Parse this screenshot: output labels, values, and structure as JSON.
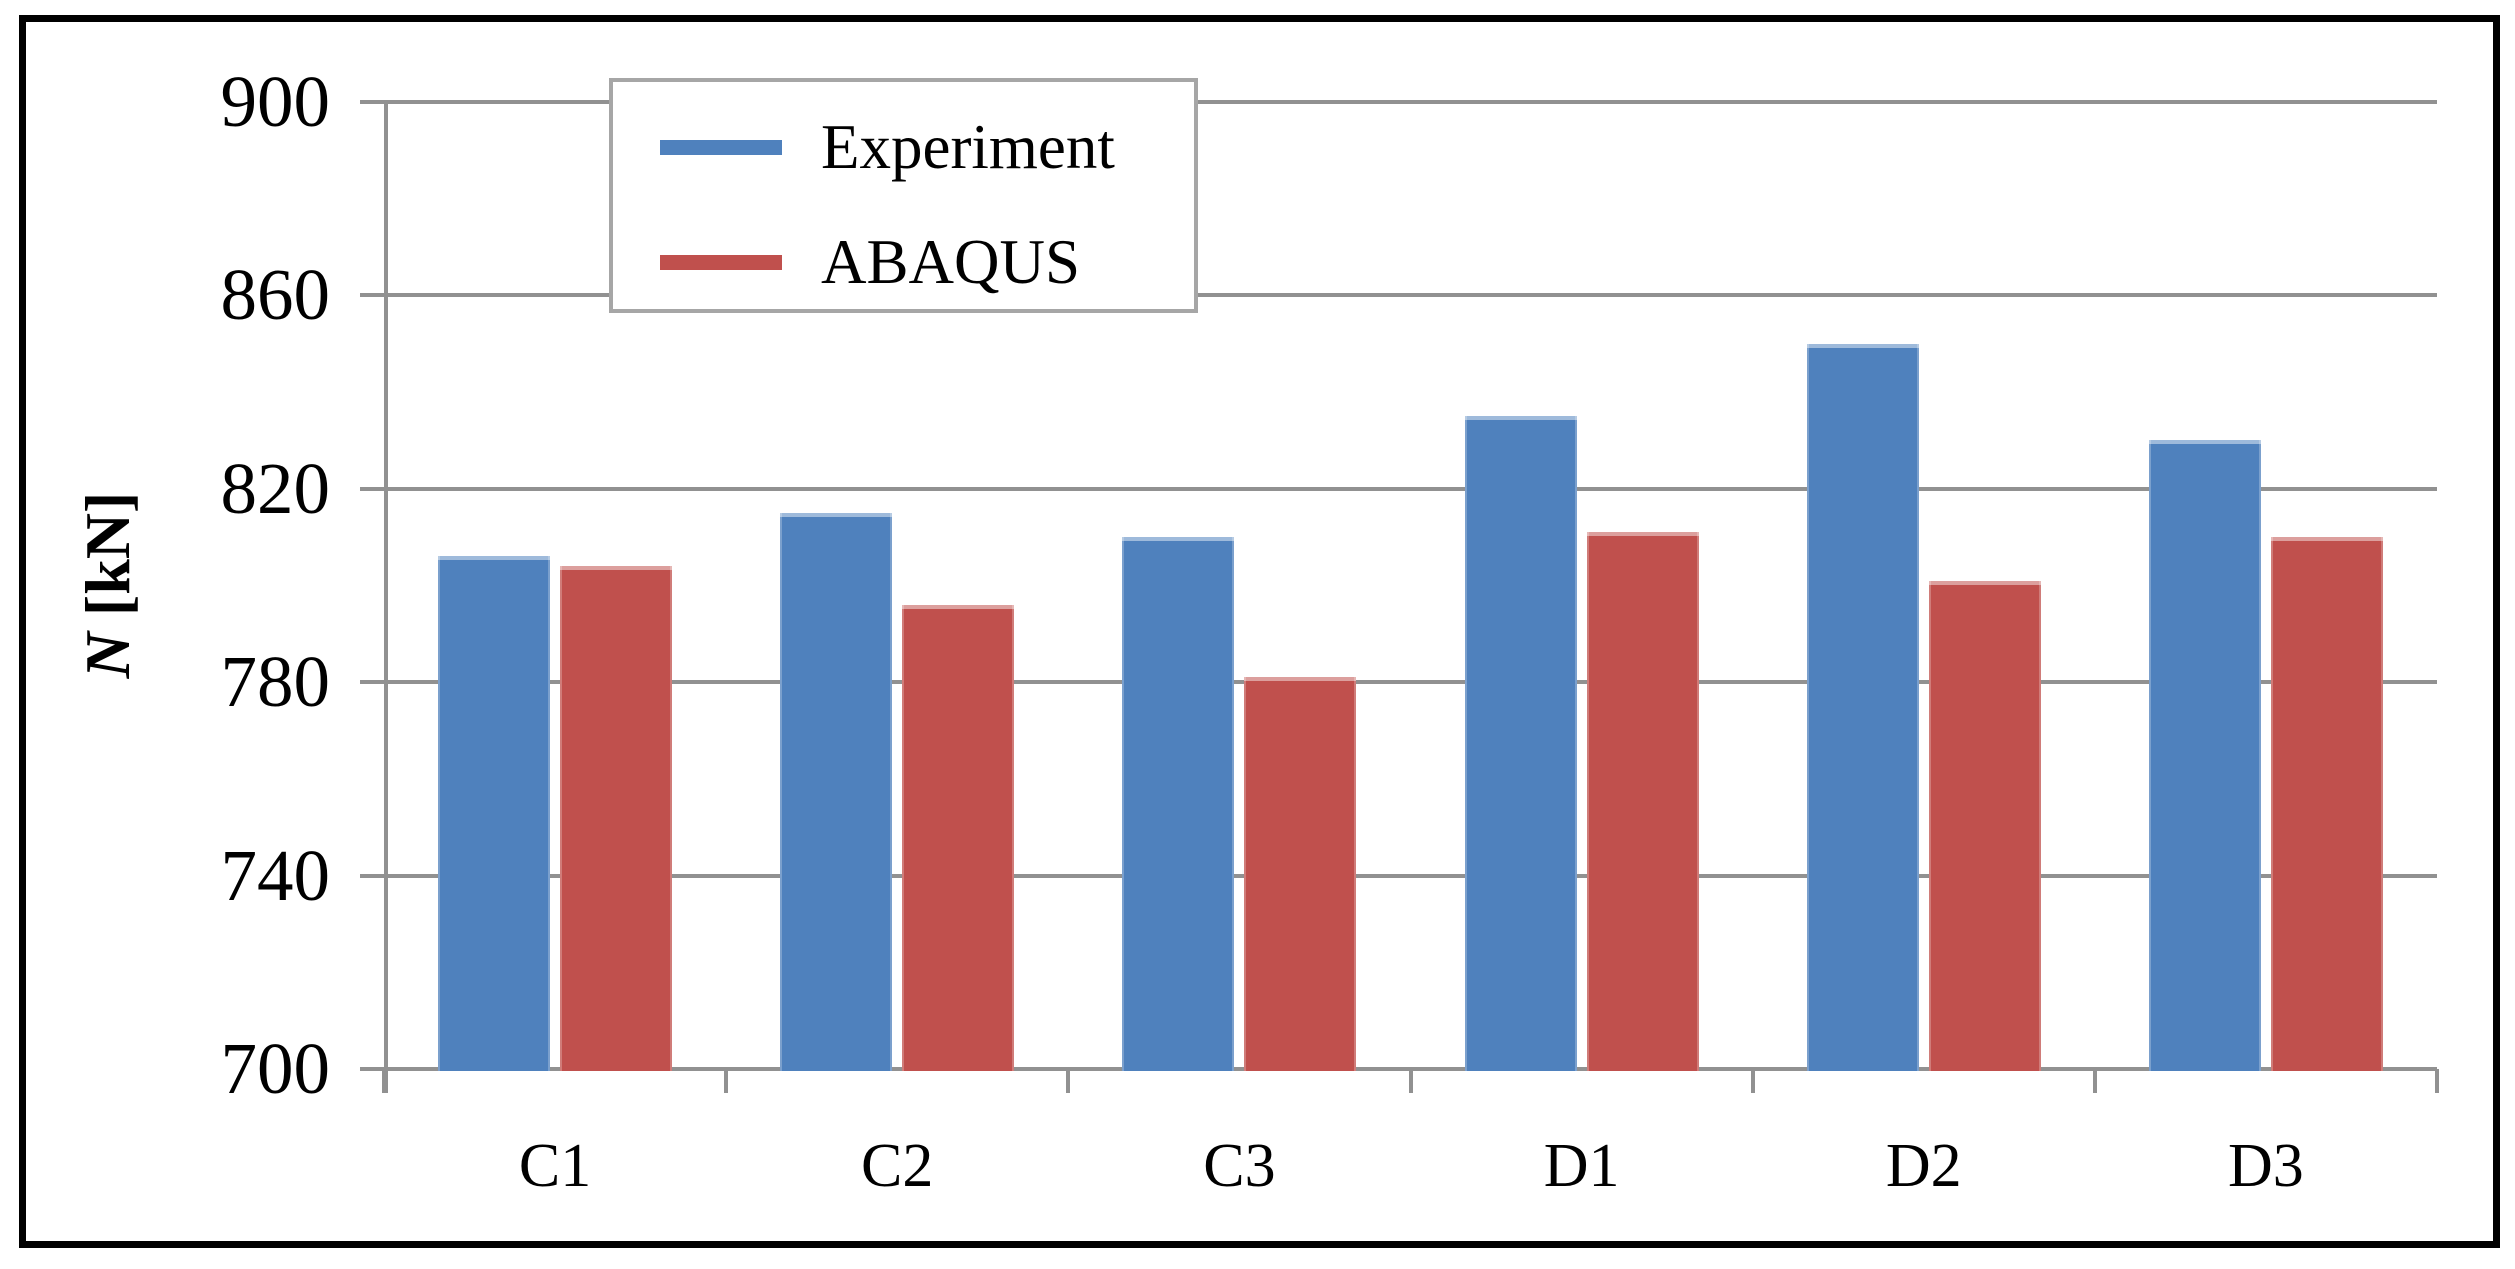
{
  "chart_data": {
    "type": "bar",
    "title": "",
    "categories": [
      "C1",
      "C2",
      "C3",
      "D1",
      "D2",
      "D3"
    ],
    "series": [
      {
        "name": "Experiment",
        "color": "#4f81bd",
        "values": [
          806,
          815,
          810,
          835,
          850,
          830
        ]
      },
      {
        "name": "ABAQUS",
        "color": "#c0504d",
        "values": [
          804,
          796,
          781,
          811,
          801,
          810
        ]
      }
    ],
    "xlabel": "",
    "ylabel": "N [kN]",
    "ylabel_symbol": "N",
    "ylabel_unit": "[kN]",
    "ylim": [
      700,
      900
    ],
    "yticks": [
      700,
      740,
      780,
      820,
      860,
      900
    ],
    "grid": true,
    "legend_position": "top-left-inside",
    "colors": {
      "experiment": "#4f81bd",
      "abaqus": "#c0504d",
      "gridline": "#919191",
      "axis": "#919191",
      "legend_border": "#a6a6a6",
      "frame_border": "#000000",
      "background": "#ffffff",
      "text": "#000000"
    }
  }
}
